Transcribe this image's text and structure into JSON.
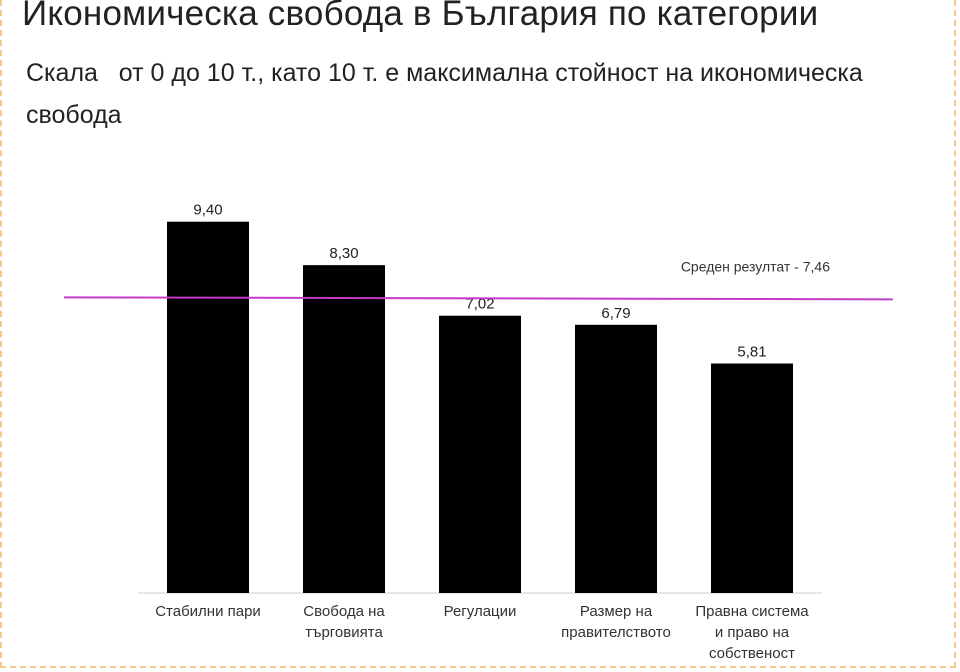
{
  "title": "Икономическа свобода в България по категории",
  "subtitle": "Скала   от 0 до 10 т., като 10 т. е максимална стойност на икономическа свобода",
  "colors": {
    "bar": "#000000",
    "average_line": "#c23bc4",
    "frame": "#f6c98a"
  },
  "chart_data": {
    "type": "bar",
    "categories": [
      [
        "Стабилни пари"
      ],
      [
        "Свобода на",
        "търговията"
      ],
      [
        "Регулации"
      ],
      [
        "Размер на",
        "правителството"
      ],
      [
        "Правна система",
        "и право на",
        "собственост"
      ]
    ],
    "values": [
      9.4,
      8.3,
      7.02,
      6.79,
      5.81
    ],
    "value_labels": [
      "9,40",
      "8,30",
      "7,02",
      "6,79",
      "5,81"
    ],
    "average": {
      "value": 7.46,
      "label": "Среден резултат - 7,46"
    },
    "ylim": [
      0,
      10
    ],
    "grid": false,
    "xlabel": "",
    "ylabel": ""
  }
}
